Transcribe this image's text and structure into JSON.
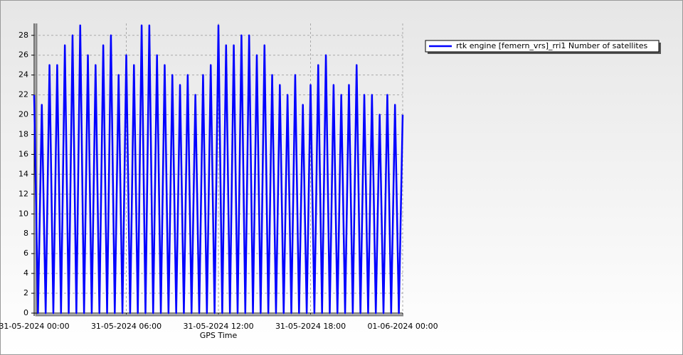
{
  "chart_data": {
    "type": "line",
    "x_label": "GPS Time",
    "x": [
      "31-05-2024 00:00",
      "31-05-2024 00:15",
      "31-05-2024 00:30",
      "31-05-2024 00:45",
      "31-05-2024 01:00",
      "31-05-2024 01:15",
      "31-05-2024 01:30",
      "31-05-2024 01:45",
      "31-05-2024 02:00",
      "31-05-2024 02:15",
      "31-05-2024 02:30",
      "31-05-2024 02:45",
      "31-05-2024 03:00",
      "31-05-2024 03:15",
      "31-05-2024 03:30",
      "31-05-2024 03:45",
      "31-05-2024 04:00",
      "31-05-2024 04:15",
      "31-05-2024 04:30",
      "31-05-2024 04:45",
      "31-05-2024 05:00",
      "31-05-2024 05:15",
      "31-05-2024 05:30",
      "31-05-2024 05:45",
      "31-05-2024 06:00",
      "31-05-2024 06:15",
      "31-05-2024 06:30",
      "31-05-2024 06:45",
      "31-05-2024 07:00",
      "31-05-2024 07:15",
      "31-05-2024 07:30",
      "31-05-2024 07:45",
      "31-05-2024 08:00",
      "31-05-2024 08:15",
      "31-05-2024 08:30",
      "31-05-2024 08:45",
      "31-05-2024 09:00",
      "31-05-2024 09:15",
      "31-05-2024 09:30",
      "31-05-2024 09:45",
      "31-05-2024 10:00",
      "31-05-2024 10:15",
      "31-05-2024 10:30",
      "31-05-2024 10:45",
      "31-05-2024 11:00",
      "31-05-2024 11:15",
      "31-05-2024 11:30",
      "31-05-2024 11:45",
      "31-05-2024 12:00",
      "31-05-2024 12:15",
      "31-05-2024 12:30",
      "31-05-2024 12:45",
      "31-05-2024 13:00",
      "31-05-2024 13:15",
      "31-05-2024 13:30",
      "31-05-2024 13:45",
      "31-05-2024 14:00",
      "31-05-2024 14:15",
      "31-05-2024 14:30",
      "31-05-2024 14:45",
      "31-05-2024 15:00",
      "31-05-2024 15:15",
      "31-05-2024 15:30",
      "31-05-2024 15:45",
      "31-05-2024 16:00",
      "31-05-2024 16:15",
      "31-05-2024 16:30",
      "31-05-2024 16:45",
      "31-05-2024 17:00",
      "31-05-2024 17:15",
      "31-05-2024 17:30",
      "31-05-2024 17:45",
      "31-05-2024 18:00",
      "31-05-2024 18:15",
      "31-05-2024 18:30",
      "31-05-2024 18:45",
      "31-05-2024 19:00",
      "31-05-2024 19:15",
      "31-05-2024 19:30",
      "31-05-2024 19:45",
      "31-05-2024 20:00",
      "31-05-2024 20:15",
      "31-05-2024 20:30",
      "31-05-2024 20:45",
      "31-05-2024 21:00",
      "31-05-2024 21:15",
      "31-05-2024 21:30",
      "31-05-2024 21:45",
      "31-05-2024 22:00",
      "31-05-2024 22:15",
      "31-05-2024 22:30",
      "31-05-2024 22:45",
      "31-05-2024 23:00",
      "31-05-2024 23:15",
      "31-05-2024 23:30",
      "31-05-2024 23:45",
      "01-06-2024 00:00"
    ],
    "series": [
      {
        "name": "rtk engine [femern_vrs]_rri1 Number of satellites",
        "color": "#0000ff",
        "values": [
          22,
          0,
          21,
          0,
          25,
          0,
          25,
          0,
          27,
          0,
          28,
          0,
          29,
          0,
          26,
          0,
          25,
          0,
          27,
          0,
          28,
          0,
          24,
          0,
          26,
          0,
          25,
          0,
          29,
          0,
          29,
          0,
          26,
          0,
          25,
          0,
          24,
          0,
          23,
          0,
          24,
          0,
          22,
          0,
          24,
          0,
          25,
          0,
          29,
          0,
          27,
          0,
          27,
          0,
          28,
          0,
          28,
          0,
          26,
          0,
          27,
          0,
          24,
          0,
          23,
          0,
          22,
          0,
          24,
          0,
          21,
          0,
          23,
          0,
          25,
          0,
          26,
          0,
          23,
          0,
          22,
          0,
          23,
          0,
          25,
          0,
          22,
          0,
          22,
          0,
          20,
          0,
          22,
          0,
          21,
          0,
          20
        ]
      }
    ],
    "xlim": [
      "31-05-2024 00:00",
      "01-06-2024 00:00"
    ],
    "xticks": [
      "31-05-2024 00:00",
      "31-05-2024 06:00",
      "31-05-2024 12:00",
      "31-05-2024 18:00",
      "01-06-2024 00:00"
    ],
    "ylim": [
      0,
      29.2
    ],
    "yticks": [
      0,
      2,
      4,
      6,
      8,
      10,
      12,
      14,
      16,
      18,
      20,
      22,
      24,
      26,
      28
    ],
    "grid": true,
    "legend": "right"
  }
}
